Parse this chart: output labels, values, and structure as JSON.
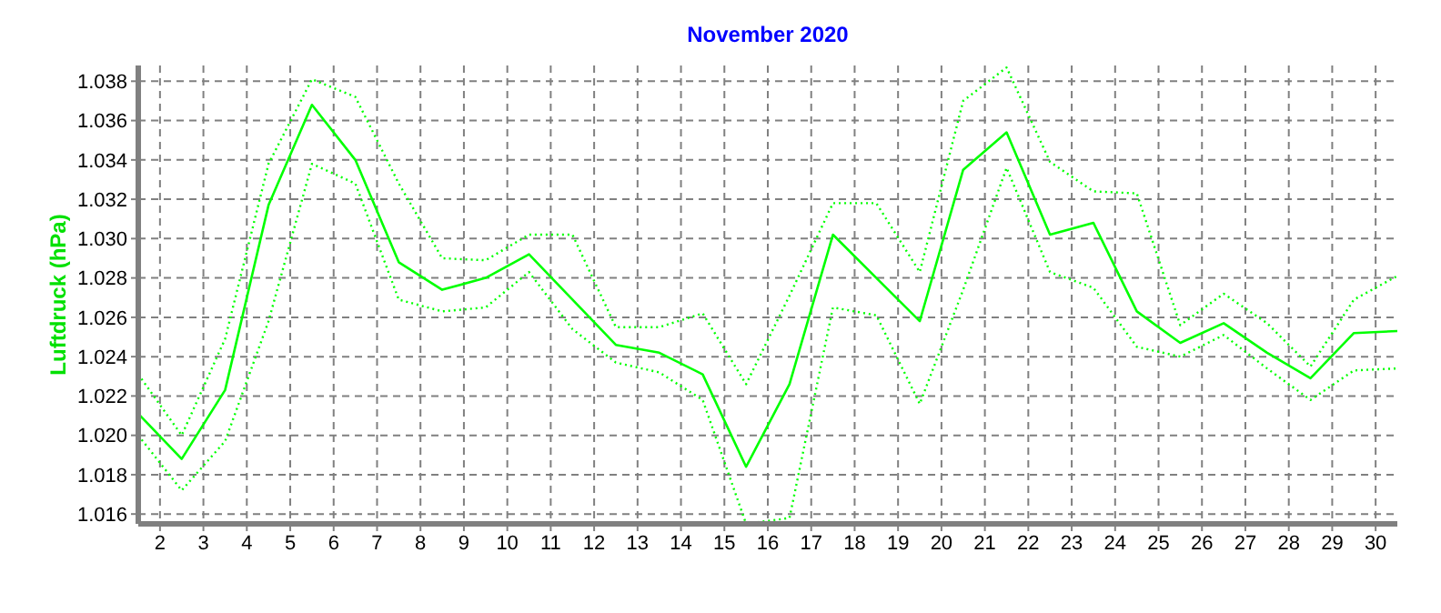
{
  "chart_data": {
    "type": "line",
    "title": "November 2020",
    "ylabel": "Luftdruck (hPa)",
    "x": [
      1.5,
      2.5,
      3.5,
      4.5,
      5.5,
      6.5,
      7.5,
      8.5,
      9.5,
      10.5,
      11.5,
      12.5,
      13.5,
      14.5,
      15.5,
      16.5,
      17.5,
      18.5,
      19.5,
      20.5,
      21.5,
      22.5,
      23.5,
      24.5,
      25.5,
      26.5,
      27.5,
      28.5,
      29.5,
      30.5
    ],
    "series": [
      {
        "color": "#00ff00",
        "line_style": "dotted",
        "values": [
          1.0231,
          1.02,
          1.0249,
          1.0338,
          1.0381,
          1.0372,
          1.0328,
          1.029,
          1.0289,
          1.0302,
          1.0302,
          1.0255,
          1.0255,
          1.0262,
          1.0226,
          1.0271,
          1.0318,
          1.0318,
          1.0283,
          1.037,
          1.0387,
          1.0339,
          1.0324,
          1.0323,
          1.0256,
          1.0272,
          1.0257,
          1.0235,
          1.0269,
          1.0281
        ]
      },
      {
        "color": "#00ff00",
        "line_style": "solid",
        "values": [
          1.0211,
          1.0188,
          1.0223,
          1.0317,
          1.0368,
          1.034,
          1.0288,
          1.0274,
          1.028,
          1.0292,
          1.0269,
          1.0246,
          1.0242,
          1.0231,
          1.0184,
          1.0226,
          1.0302,
          1.028,
          1.0258,
          1.0335,
          1.0354,
          1.0302,
          1.0308,
          1.0263,
          1.0247,
          1.0257,
          1.0242,
          1.0229,
          1.0252,
          1.0253
        ]
      },
      {
        "color": "#00ff00",
        "line_style": "dotted",
        "values": [
          1.02,
          1.0172,
          1.0197,
          1.0258,
          1.0338,
          1.0328,
          1.0269,
          1.0263,
          1.0265,
          1.0283,
          1.0254,
          1.0237,
          1.0232,
          1.0218,
          1.0155,
          1.0158,
          1.0265,
          1.0261,
          1.0216,
          1.0274,
          1.0336,
          1.0283,
          1.0275,
          1.0245,
          1.024,
          1.0251,
          1.0234,
          1.0218,
          1.0233,
          1.0234
        ]
      }
    ],
    "xlim": [
      1.5,
      30.5
    ],
    "xticks": [
      2,
      3,
      4,
      5,
      6,
      7,
      8,
      9,
      10,
      11,
      12,
      13,
      14,
      15,
      16,
      17,
      18,
      19,
      20,
      21,
      22,
      23,
      24,
      25,
      26,
      27,
      28,
      29,
      30
    ],
    "ylim": [
      1.0155,
      1.0388
    ],
    "yticks": [
      1.016,
      1.018,
      {
        "value": 1.02,
        "label": "1.020"
      },
      1.022,
      1.024,
      1.026,
      1.028,
      {
        "value": 1.03,
        "label": "1.030"
      },
      1.032,
      1.034,
      1.036,
      1.038
    ],
    "grid": true
  }
}
